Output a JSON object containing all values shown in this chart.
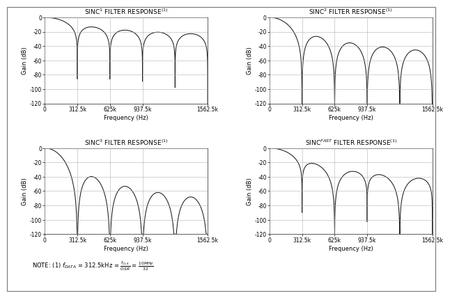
{
  "titles": [
    "SINC$^1$ FILTER RESPONSE$^{(1)}$",
    "SINC$^2$ FILTER RESPONSE$^{(1)}$",
    "SINC$^3$ FILTER RESPONSE$^{(1)}$",
    "SINC$^{FAST}$ FILTER RESPONSE$^{(1)}$"
  ],
  "xlabel": "Frequency (Hz)",
  "ylabel": "Gain (dB)",
  "xlim": [
    0,
    1562500
  ],
  "ylim": [
    -120,
    0
  ],
  "xticks": [
    0,
    312500,
    625000,
    937500,
    1562500
  ],
  "xticklabels": [
    "0",
    "312.5k",
    "625k",
    "937.5k",
    "1562.5k"
  ],
  "yticks": [
    0,
    -20,
    -40,
    -60,
    -80,
    -100,
    -120
  ],
  "fdata": 312500,
  "osr": 32,
  "fclk": 10000000,
  "line_color": "#1a1a1a",
  "bg_color": "#ffffff",
  "grid_color": "#b0b0b0",
  "title_fontsize": 6.5,
  "label_fontsize": 6.0,
  "tick_fontsize": 5.5,
  "note_fontsize": 6.0
}
